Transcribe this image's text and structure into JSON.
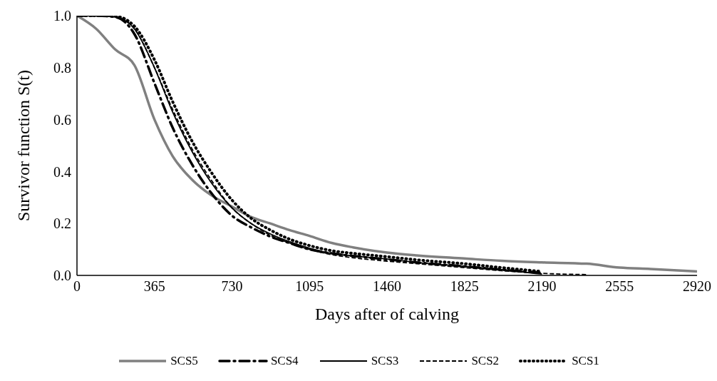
{
  "chart_data": {
    "type": "line",
    "xlabel": "Days after of calving",
    "ylabel": "Survivor function S(t)",
    "x": [
      0,
      90,
      180,
      270,
      365,
      450,
      540,
      630,
      730,
      820,
      910,
      1000,
      1095,
      1200,
      1300,
      1460,
      1600,
      1825,
      2000,
      2190,
      2400,
      2555,
      2700,
      2920
    ],
    "series": [
      {
        "name": "SCS5",
        "color": "#808080",
        "line_style": "solid",
        "values": [
          1,
          0.95,
          0.87,
          0.81,
          0.6,
          0.46,
          0.37,
          0.31,
          0.265,
          0.225,
          0.2,
          0.175,
          0.152,
          0.125,
          0.108,
          0.088,
          0.077,
          0.065,
          0.056,
          0.05,
          0.045,
          0.03,
          0.025,
          0.015
        ]
      },
      {
        "name": "SCS4",
        "color": "#000000",
        "line_style": "dashdot",
        "values": [
          1,
          1,
          0.995,
          0.93,
          0.74,
          0.57,
          0.43,
          0.32,
          0.23,
          0.185,
          0.15,
          0.125,
          0.1,
          0.085,
          0.075,
          0.062,
          0.05,
          0.035,
          0.022,
          0.01,
          null,
          null,
          null,
          null
        ]
      },
      {
        "name": "SCS3",
        "color": "#000000",
        "line_style": "solid",
        "values": [
          1,
          1,
          0.995,
          0.95,
          0.8,
          0.63,
          0.48,
          0.36,
          0.26,
          0.2,
          0.16,
          0.13,
          0.105,
          0.085,
          0.075,
          0.063,
          0.05,
          0.035,
          0.022,
          0.005,
          null,
          null,
          null,
          null
        ]
      },
      {
        "name": "SCS2",
        "color": "#000000",
        "line_style": "dashed",
        "values": [
          1,
          1,
          0.995,
          0.95,
          0.8,
          0.64,
          0.49,
          0.37,
          0.26,
          0.2,
          0.155,
          0.125,
          0.1,
          0.08,
          0.068,
          0.055,
          0.045,
          0.03,
          0.018,
          0.008,
          0.003,
          null,
          null,
          null
        ]
      },
      {
        "name": "SCS1",
        "color": "#000000",
        "line_style": "dotted",
        "values": [
          1,
          1,
          0.998,
          0.96,
          0.83,
          0.67,
          0.52,
          0.4,
          0.29,
          0.22,
          0.175,
          0.14,
          0.115,
          0.095,
          0.085,
          0.072,
          0.06,
          0.045,
          0.03,
          0.015,
          null,
          null,
          null,
          null
        ]
      }
    ],
    "xlim": [
      0,
      2920
    ],
    "xticks": [
      0,
      365,
      730,
      1095,
      1460,
      1825,
      2190,
      2555,
      2920
    ],
    "ylim": [
      0,
      1
    ],
    "yticks": [
      {
        "value": 0,
        "label": "0.0"
      },
      {
        "value": 0.2,
        "label": "0.2"
      },
      {
        "value": 0.4,
        "label": "0.4"
      },
      {
        "value": 0.6,
        "label": "0.6"
      },
      {
        "value": 0.8,
        "label": "0.8"
      },
      {
        "value": 1,
        "label": "1.0"
      }
    ],
    "grid": false,
    "legend": "bottom",
    "marker": "none"
  }
}
